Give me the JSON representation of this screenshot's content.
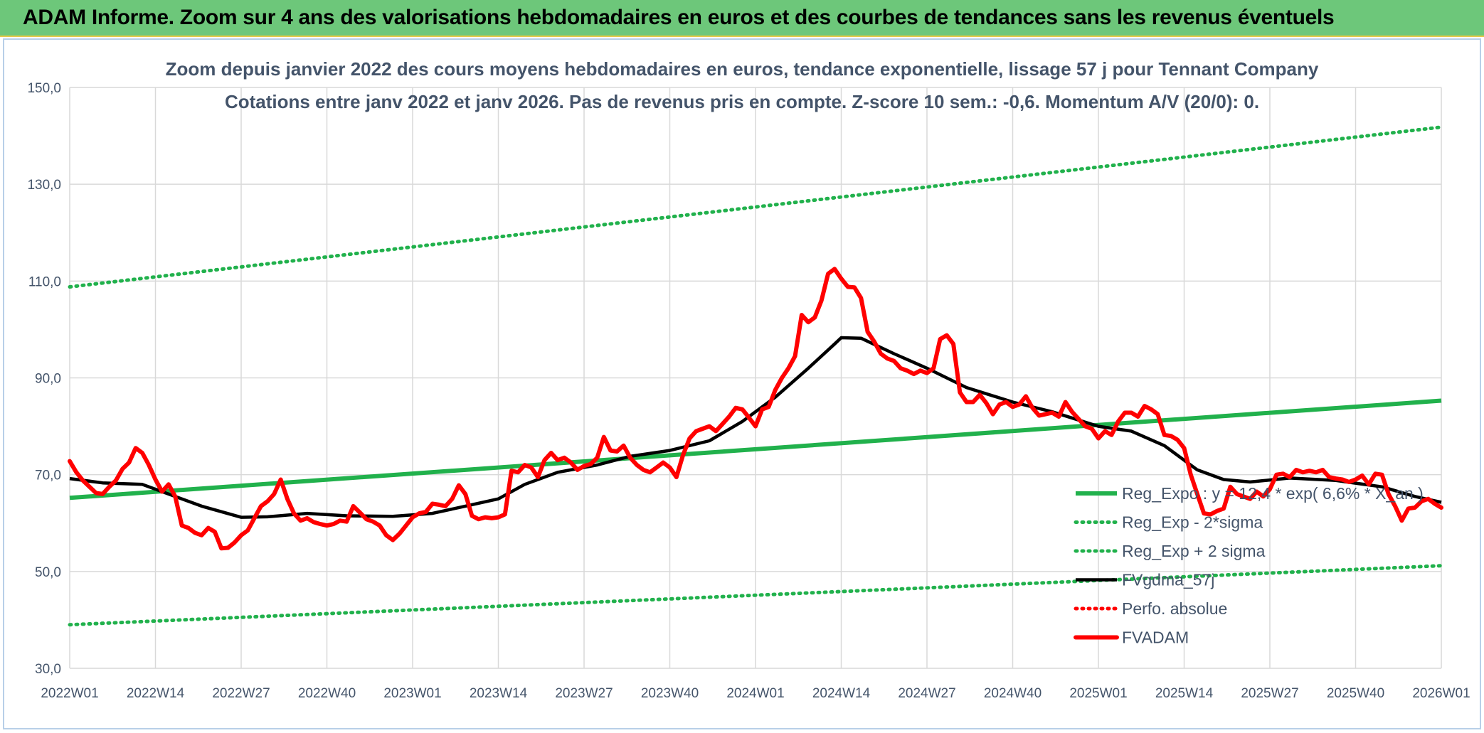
{
  "banner": {
    "title": "ADAM Informe. Zoom sur 4 ans des valorisations hebdomadaires en euros et des courbes de tendances sans les revenus éventuels"
  },
  "chart_data": {
    "type": "line",
    "title_line1": "Zoom depuis janvier 2022 des cours moyens hebdomadaires en euros, tendance exponentielle, lissage 57 j pour Tennant Company",
    "title_line2": "Cotations entre janv 2022 et janv 2026. Pas de revenus pris en compte. Z-score 10 sem.: -0,6. Momentum A/V (20/0): 0.",
    "ylim": [
      30,
      150
    ],
    "y_ticks": [
      "150,0",
      "130,0",
      "110,0",
      "90,0",
      "70,0",
      "50,0",
      "30,0"
    ],
    "y_tick_values": [
      150,
      130,
      110,
      90,
      70,
      50,
      30
    ],
    "x_range": [
      1,
      209
    ],
    "x_ticks": [
      "2022W01",
      "2022W14",
      "2022W27",
      "2022W40",
      "2023W01",
      "2023W14",
      "2023W27",
      "2023W40",
      "2024W01",
      "2024W14",
      "2024W27",
      "2024W40",
      "2025W01",
      "2025W14",
      "2025W27",
      "2025W40",
      "2026W01"
    ],
    "x_tick_positions": [
      1,
      14,
      27,
      40,
      53,
      66,
      79,
      92,
      105,
      118,
      131,
      144,
      157,
      170,
      183,
      196,
      209
    ],
    "grid": true,
    "legend_position": "bottom-right",
    "series": [
      {
        "name": "Reg_Expo : y = 12,4 * exp( 6,6% * X_an )",
        "color": "#21b14c",
        "style": "solid",
        "points": [
          [
            1,
            65.2
          ],
          [
            209,
            85.3
          ]
        ]
      },
      {
        "name": "Reg_Exp - 2*sigma",
        "color": "#21b14c",
        "style": "dotted",
        "points": [
          [
            1,
            39.0
          ],
          [
            209,
            51.2
          ]
        ]
      },
      {
        "name": "Reg_Exp + 2 sigma",
        "color": "#21b14c",
        "style": "dotted",
        "points": [
          [
            1,
            108.8
          ],
          [
            209,
            141.8
          ]
        ]
      },
      {
        "name": "FVgdma_57j",
        "color": "#000000",
        "style": "solid",
        "points": [
          [
            1,
            69.2
          ],
          [
            6,
            68.3
          ],
          [
            12,
            68.0
          ],
          [
            16,
            66.0
          ],
          [
            21,
            63.5
          ],
          [
            27,
            61.2
          ],
          [
            31,
            61.3
          ],
          [
            37,
            62.0
          ],
          [
            43,
            61.5
          ],
          [
            50,
            61.4
          ],
          [
            56,
            62.0
          ],
          [
            61,
            63.5
          ],
          [
            66,
            65.0
          ],
          [
            70,
            68.0
          ],
          [
            75,
            70.5
          ],
          [
            81,
            72.0
          ],
          [
            86,
            73.8
          ],
          [
            92,
            75.0
          ],
          [
            98,
            77.0
          ],
          [
            103,
            81.0
          ],
          [
            108,
            86.0
          ],
          [
            113,
            92.0
          ],
          [
            117,
            97.0
          ],
          [
            118,
            98.3
          ],
          [
            121,
            98.2
          ],
          [
            126,
            95.0
          ],
          [
            131,
            92.0
          ],
          [
            137,
            88.0
          ],
          [
            144,
            85.0
          ],
          [
            150,
            83.0
          ],
          [
            157,
            80.0
          ],
          [
            162,
            79.0
          ],
          [
            167,
            76.0
          ],
          [
            172,
            71.0
          ],
          [
            176,
            69.0
          ],
          [
            180,
            68.5
          ],
          [
            186,
            69.3
          ],
          [
            193,
            68.8
          ],
          [
            200,
            67.5
          ],
          [
            205,
            65.5
          ],
          [
            209,
            64.3
          ]
        ]
      },
      {
        "name": "Perfo. absolue",
        "color": "#ff0000",
        "style": "dotted",
        "points": []
      },
      {
        "name": "FVADAM",
        "color": "#ff0000",
        "style": "solid",
        "points": [
          [
            1,
            72.8
          ],
          [
            2,
            70.5
          ],
          [
            3,
            68.8
          ],
          [
            4,
            67.5
          ],
          [
            5,
            66.2
          ],
          [
            6,
            66.0
          ],
          [
            7,
            67.5
          ],
          [
            8,
            68.8
          ],
          [
            9,
            71.2
          ],
          [
            10,
            72.5
          ],
          [
            11,
            75.5
          ],
          [
            12,
            74.5
          ],
          [
            13,
            72.0
          ],
          [
            14,
            69.0
          ],
          [
            15,
            66.5
          ],
          [
            16,
            68.0
          ],
          [
            17,
            65.5
          ],
          [
            18,
            59.5
          ],
          [
            19,
            59.0
          ],
          [
            20,
            58.0
          ],
          [
            21,
            57.5
          ],
          [
            22,
            59.0
          ],
          [
            23,
            58.2
          ],
          [
            24,
            54.8
          ],
          [
            25,
            54.9
          ],
          [
            26,
            56.0
          ],
          [
            27,
            57.5
          ],
          [
            28,
            58.5
          ],
          [
            29,
            61.0
          ],
          [
            30,
            63.5
          ],
          [
            31,
            64.5
          ],
          [
            32,
            66.0
          ],
          [
            33,
            69.0
          ],
          [
            34,
            65.0
          ],
          [
            35,
            62.0
          ],
          [
            36,
            60.5
          ],
          [
            37,
            61.0
          ],
          [
            38,
            60.2
          ],
          [
            39,
            59.8
          ],
          [
            40,
            59.5
          ],
          [
            41,
            59.8
          ],
          [
            42,
            60.5
          ],
          [
            43,
            60.3
          ],
          [
            44,
            63.5
          ],
          [
            45,
            62.2
          ],
          [
            46,
            60.8
          ],
          [
            47,
            60.3
          ],
          [
            48,
            59.5
          ],
          [
            49,
            57.5
          ],
          [
            50,
            56.5
          ],
          [
            51,
            57.8
          ],
          [
            52,
            59.5
          ],
          [
            53,
            61.2
          ],
          [
            54,
            62.0
          ],
          [
            55,
            62.3
          ],
          [
            56,
            64.0
          ],
          [
            57,
            63.8
          ],
          [
            58,
            63.5
          ],
          [
            59,
            65.0
          ],
          [
            60,
            67.8
          ],
          [
            61,
            66.0
          ],
          [
            62,
            61.5
          ],
          [
            63,
            60.8
          ],
          [
            64,
            61.2
          ],
          [
            65,
            61.0
          ],
          [
            66,
            61.2
          ],
          [
            67,
            61.8
          ],
          [
            68,
            70.8
          ],
          [
            69,
            70.5
          ],
          [
            70,
            72.0
          ],
          [
            71,
            71.5
          ],
          [
            72,
            69.5
          ],
          [
            73,
            73.0
          ],
          [
            74,
            74.5
          ],
          [
            75,
            73.0
          ],
          [
            76,
            73.5
          ],
          [
            77,
            72.5
          ],
          [
            78,
            71.0
          ],
          [
            79,
            71.8
          ],
          [
            80,
            72.2
          ],
          [
            81,
            73.5
          ],
          [
            82,
            77.8
          ],
          [
            83,
            75.0
          ],
          [
            84,
            74.8
          ],
          [
            85,
            76.0
          ],
          [
            86,
            73.5
          ],
          [
            87,
            72.0
          ],
          [
            88,
            71.0
          ],
          [
            89,
            70.5
          ],
          [
            90,
            71.5
          ],
          [
            91,
            72.5
          ],
          [
            92,
            71.5
          ],
          [
            93,
            69.5
          ],
          [
            94,
            74.0
          ],
          [
            95,
            77.5
          ],
          [
            96,
            79.0
          ],
          [
            97,
            79.5
          ],
          [
            98,
            80.0
          ],
          [
            99,
            79.0
          ],
          [
            100,
            80.5
          ],
          [
            101,
            82.0
          ],
          [
            102,
            83.8
          ],
          [
            103,
            83.5
          ],
          [
            104,
            81.8
          ],
          [
            105,
            80.0
          ],
          [
            106,
            83.5
          ],
          [
            107,
            84.0
          ],
          [
            108,
            87.5
          ],
          [
            109,
            90.0
          ],
          [
            110,
            92.0
          ],
          [
            111,
            94.5
          ],
          [
            112,
            103.0
          ],
          [
            113,
            101.5
          ],
          [
            114,
            102.5
          ],
          [
            115,
            106.0
          ],
          [
            116,
            111.5
          ],
          [
            117,
            112.5
          ],
          [
            118,
            110.5
          ],
          [
            119,
            108.8
          ],
          [
            120,
            108.7
          ],
          [
            121,
            106.5
          ],
          [
            122,
            99.5
          ],
          [
            123,
            97.5
          ],
          [
            124,
            95.0
          ],
          [
            125,
            94.0
          ],
          [
            126,
            93.5
          ],
          [
            127,
            92.0
          ],
          [
            128,
            91.5
          ],
          [
            129,
            90.8
          ],
          [
            130,
            91.5
          ],
          [
            131,
            91.0
          ],
          [
            132,
            92.0
          ],
          [
            133,
            98.0
          ],
          [
            134,
            98.8
          ],
          [
            135,
            97.0
          ],
          [
            136,
            87.0
          ],
          [
            137,
            85.0
          ],
          [
            138,
            85.0
          ],
          [
            139,
            86.5
          ],
          [
            140,
            84.8
          ],
          [
            141,
            82.5
          ],
          [
            142,
            84.5
          ],
          [
            143,
            85.0
          ],
          [
            144,
            84.0
          ],
          [
            145,
            84.5
          ],
          [
            146,
            86.2
          ],
          [
            147,
            83.8
          ],
          [
            148,
            82.2
          ],
          [
            149,
            82.5
          ],
          [
            150,
            82.8
          ],
          [
            151,
            82.0
          ],
          [
            152,
            85.0
          ],
          [
            153,
            83.0
          ],
          [
            154,
            81.5
          ],
          [
            155,
            80.0
          ],
          [
            156,
            79.5
          ],
          [
            157,
            77.5
          ],
          [
            158,
            79.0
          ],
          [
            159,
            78.2
          ],
          [
            160,
            81.0
          ],
          [
            161,
            82.8
          ],
          [
            162,
            82.8
          ],
          [
            163,
            82.0
          ],
          [
            164,
            84.2
          ],
          [
            165,
            83.5
          ],
          [
            166,
            82.5
          ],
          [
            167,
            78.2
          ],
          [
            168,
            78.0
          ],
          [
            169,
            77.2
          ],
          [
            170,
            75.5
          ],
          [
            171,
            70.0
          ],
          [
            172,
            66.0
          ],
          [
            173,
            62.0
          ],
          [
            174,
            61.8
          ],
          [
            175,
            62.5
          ],
          [
            176,
            63.0
          ],
          [
            177,
            67.5
          ],
          [
            178,
            66.0
          ],
          [
            179,
            65.5
          ],
          [
            180,
            65.0
          ],
          [
            181,
            66.5
          ],
          [
            182,
            65.5
          ],
          [
            183,
            67.0
          ],
          [
            184,
            70.0
          ],
          [
            185,
            70.2
          ],
          [
            186,
            69.5
          ],
          [
            187,
            71.0
          ],
          [
            188,
            70.5
          ],
          [
            189,
            70.8
          ],
          [
            190,
            70.5
          ],
          [
            191,
            71.0
          ],
          [
            192,
            69.5
          ],
          [
            193,
            69.2
          ],
          [
            194,
            69.0
          ],
          [
            195,
            68.5
          ],
          [
            196,
            69.0
          ],
          [
            197,
            69.8
          ],
          [
            198,
            68.0
          ],
          [
            199,
            70.2
          ],
          [
            200,
            70.0
          ],
          [
            201,
            66.0
          ],
          [
            202,
            63.5
          ],
          [
            203,
            60.5
          ],
          [
            204,
            63.0
          ],
          [
            205,
            63.2
          ],
          [
            206,
            64.5
          ],
          [
            207,
            65.0
          ],
          [
            208,
            64.0
          ],
          [
            209,
            63.2
          ]
        ]
      }
    ]
  }
}
